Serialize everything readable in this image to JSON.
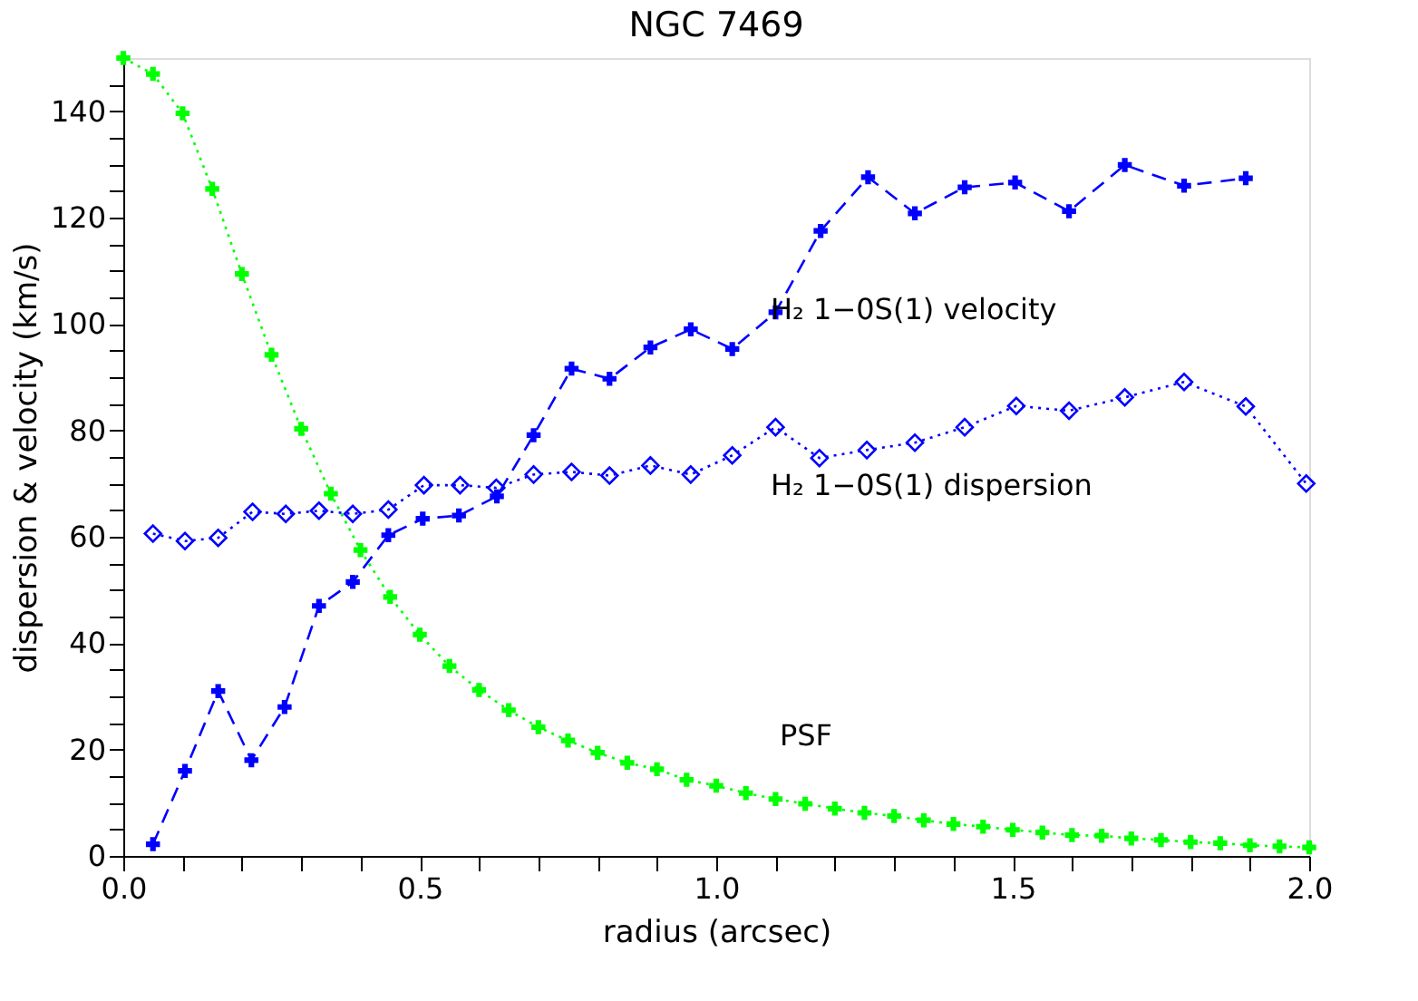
{
  "chart_data": {
    "type": "line",
    "title": "NGC 7469",
    "xlabel": "radius (arcsec)",
    "ylabel": "dispersion & velocity (km/s)",
    "xlim": [
      0,
      2.0
    ],
    "ylim": [
      0,
      150
    ],
    "xticks": [
      {
        "value": 0,
        "label": "0.0"
      },
      {
        "value": 0.1,
        "label": null
      },
      {
        "value": 0.2,
        "label": null
      },
      {
        "value": 0.3,
        "label": null
      },
      {
        "value": 0.4,
        "label": null
      },
      0.5,
      {
        "value": 0.6,
        "label": null
      },
      {
        "value": 0.7,
        "label": null
      },
      {
        "value": 0.8,
        "label": null
      },
      {
        "value": 0.9,
        "label": null
      },
      {
        "value": 1,
        "label": "1.0"
      },
      {
        "value": 1.1,
        "label": null
      },
      {
        "value": 1.2,
        "label": null
      },
      {
        "value": 1.3,
        "label": null
      },
      {
        "value": 1.4,
        "label": null
      },
      1.5,
      {
        "value": 1.6,
        "label": null
      },
      {
        "value": 1.7,
        "label": null
      },
      {
        "value": 1.8,
        "label": null
      },
      {
        "value": 1.9,
        "label": null
      },
      {
        "value": 2,
        "label": "2.0"
      }
    ],
    "yticks": [
      0,
      {
        "value": 5,
        "label": null
      },
      {
        "value": 10,
        "label": null
      },
      {
        "value": 15,
        "label": null
      },
      20,
      {
        "value": 25,
        "label": null
      },
      {
        "value": 30,
        "label": null
      },
      {
        "value": 35,
        "label": null
      },
      40,
      {
        "value": 45,
        "label": null
      },
      {
        "value": 50,
        "label": null
      },
      {
        "value": 55,
        "label": null
      },
      60,
      {
        "value": 65,
        "label": null
      },
      {
        "value": 70,
        "label": null
      },
      {
        "value": 75,
        "label": null
      },
      80,
      {
        "value": 85,
        "label": null
      },
      {
        "value": 90,
        "label": null
      },
      {
        "value": 95,
        "label": null
      },
      100,
      {
        "value": 105,
        "label": null
      },
      {
        "value": 110,
        "label": null
      },
      {
        "value": 115,
        "label": null
      },
      120,
      {
        "value": 125,
        "label": null
      },
      {
        "value": 130,
        "label": null
      },
      {
        "value": 135,
        "label": null
      },
      140,
      {
        "value": 145,
        "label": null
      }
    ],
    "grid": false,
    "series": [
      {
        "color": "#0000ff",
        "marker": "cross",
        "line_style": "dashed",
        "x": [
          0.05,
          0.104,
          0.16,
          0.216,
          0.272,
          0.33,
          0.387,
          0.447,
          0.505,
          0.566,
          0.63,
          0.692,
          0.756,
          0.82,
          0.889,
          0.957,
          1.027,
          1.1,
          1.176,
          1.256,
          1.335,
          1.419,
          1.504,
          1.595,
          1.689,
          1.789,
          1.893
        ],
        "values": [
          2.2,
          16,
          31,
          18,
          28,
          47,
          51.5,
          60.3,
          63.4,
          64,
          67.6,
          79.1,
          91.6,
          89.7,
          95.6,
          99,
          95.3,
          102.2,
          117.5,
          127.6,
          120.8,
          125.7,
          126.6,
          121.2,
          129.9,
          126,
          127.4
        ]
      },
      {
        "color": "#0000ff",
        "marker": "diamond",
        "line_style": "dotted",
        "x": [
          0.05,
          0.104,
          0.16,
          0.218,
          0.274,
          0.33,
          0.387,
          0.447,
          0.507,
          0.568,
          0.629,
          0.692,
          0.756,
          0.82,
          0.889,
          0.957,
          1.027,
          1.1,
          1.174,
          1.254,
          1.335,
          1.419,
          1.506,
          1.595,
          1.689,
          1.789,
          1.893,
          1.995
        ],
        "values": [
          60.6,
          59.2,
          59.8,
          64.7,
          64.3,
          64.9,
          64.3,
          65.1,
          69.7,
          69.7,
          69.2,
          71.7,
          72.2,
          71.5,
          73.4,
          71.7,
          75.3,
          80.6,
          74.8,
          76.3,
          77.7,
          80.6,
          84.6,
          83.7,
          86.2,
          89.1,
          84.5,
          70
        ]
      },
      {
        "color": "#00ff00",
        "marker": "cross",
        "line_style": "dotted",
        "x": [
          0,
          0.05,
          0.1,
          0.15,
          0.2,
          0.25,
          0.3,
          0.35,
          0.4,
          0.45,
          0.5,
          0.55,
          0.6,
          0.65,
          0.7,
          0.75,
          0.8,
          0.85,
          0.9,
          0.95,
          1.0,
          1.05,
          1.1,
          1.15,
          1.2,
          1.25,
          1.3,
          1.35,
          1.4,
          1.45,
          1.5,
          1.55,
          1.6,
          1.65,
          1.7,
          1.75,
          1.8,
          1.85,
          1.9,
          1.95,
          2.0
        ],
        "values": [
          150,
          147,
          139.6,
          125.4,
          109.4,
          94.2,
          80.3,
          68.1,
          57.5,
          48.7,
          41.6,
          35.7,
          31.2,
          27.4,
          24.2,
          21.7,
          19.4,
          17.5,
          16.3,
          14.3,
          13.2,
          11.8,
          10.7,
          9.8,
          8.9,
          8.1,
          7.5,
          6.7,
          6.0,
          5.5,
          4.9,
          4.4,
          3.9,
          3.8,
          3.3,
          3.0,
          2.6,
          2.4,
          2.0,
          1.8,
          1.6
        ]
      }
    ],
    "annotations": [
      "H₂ 1−0S(1) velocity",
      "H₂ 1−0S(1) dispersion",
      "PSF"
    ]
  }
}
